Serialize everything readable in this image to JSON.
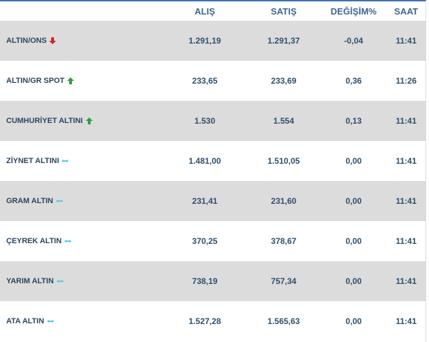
{
  "columns": [
    "ALIŞ",
    "SATIŞ",
    "DEĞİŞİM%",
    "SAAT"
  ],
  "colors": {
    "up": "#2e9e3e",
    "down": "#d0202a",
    "flat": "#5bc8e8"
  },
  "rows": [
    {
      "name": "ALTIN/ONS",
      "trend": "down",
      "icon": "arrow-down-icon",
      "buy": "1.291,19",
      "sell": "1.291,37",
      "change": "-0,04",
      "time": "11:41"
    },
    {
      "name": "ALTIN/GR SPOT",
      "trend": "up",
      "icon": "arrow-up-icon",
      "buy": "233,65",
      "sell": "233,69",
      "change": "0,36",
      "time": "11:26"
    },
    {
      "name": "CUMHURİYET ALTINI",
      "trend": "up",
      "icon": "arrow-up-icon",
      "buy": "1.530",
      "sell": "1.554",
      "change": "0,13",
      "time": "11:41"
    },
    {
      "name": "ZİYNET ALTINI",
      "trend": "flat",
      "icon": "double-arrow-icon",
      "buy": "1.481,00",
      "sell": "1.510,05",
      "change": "0,00",
      "time": "11:41"
    },
    {
      "name": "GRAM ALTIN",
      "trend": "flat",
      "icon": "double-arrow-icon",
      "buy": "231,41",
      "sell": "231,60",
      "change": "0,00",
      "time": "11:41"
    },
    {
      "name": "ÇEYREK ALTIN",
      "trend": "flat",
      "icon": "double-arrow-icon",
      "buy": "370,25",
      "sell": "378,67",
      "change": "0,00",
      "time": "11:41"
    },
    {
      "name": "YARIM ALTIN",
      "trend": "flat",
      "icon": "double-arrow-icon",
      "buy": "738,19",
      "sell": "757,34",
      "change": "0,00",
      "time": "11:41"
    },
    {
      "name": "ATA ALTIN",
      "trend": "flat",
      "icon": "double-arrow-icon",
      "buy": "1.527,28",
      "sell": "1.565,63",
      "change": "0,00",
      "time": "11:41"
    }
  ]
}
